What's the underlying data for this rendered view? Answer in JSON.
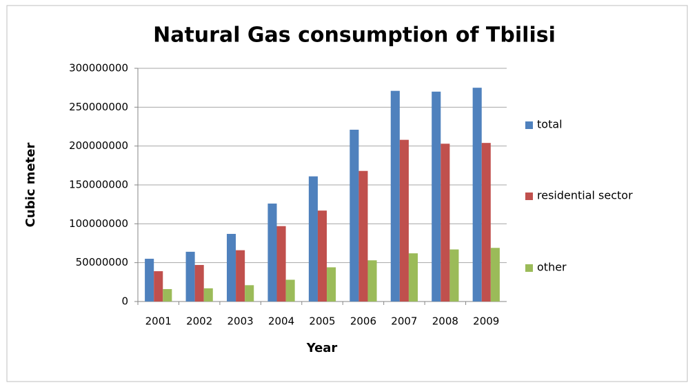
{
  "chart_data": {
    "type": "bar",
    "title": "Natural Gas consumption of Tbilisi",
    "x_label": "Year",
    "y_label": "Cubic meter",
    "categories": [
      "2001",
      "2002",
      "2003",
      "2004",
      "2005",
      "2006",
      "2007",
      "2008",
      "2009"
    ],
    "series": [
      {
        "name": "total",
        "color": "#4f81bd",
        "values": [
          55000000,
          64000000,
          87000000,
          126000000,
          161000000,
          221000000,
          271000000,
          270000000,
          275000000
        ]
      },
      {
        "name": "residential sector",
        "color": "#c0504d",
        "values": [
          39000000,
          47000000,
          66000000,
          97000000,
          117000000,
          168000000,
          208000000,
          203000000,
          204000000
        ]
      },
      {
        "name": "other",
        "color": "#9bbb59",
        "values": [
          16000000,
          17000000,
          21000000,
          28000000,
          44000000,
          53000000,
          62000000,
          67000000,
          69000000
        ]
      }
    ],
    "ylim": [
      0,
      300000000
    ],
    "yticks": [
      0,
      50000000,
      100000000,
      150000000,
      200000000,
      250000000,
      300000000
    ],
    "grid": true,
    "legend": "right"
  }
}
